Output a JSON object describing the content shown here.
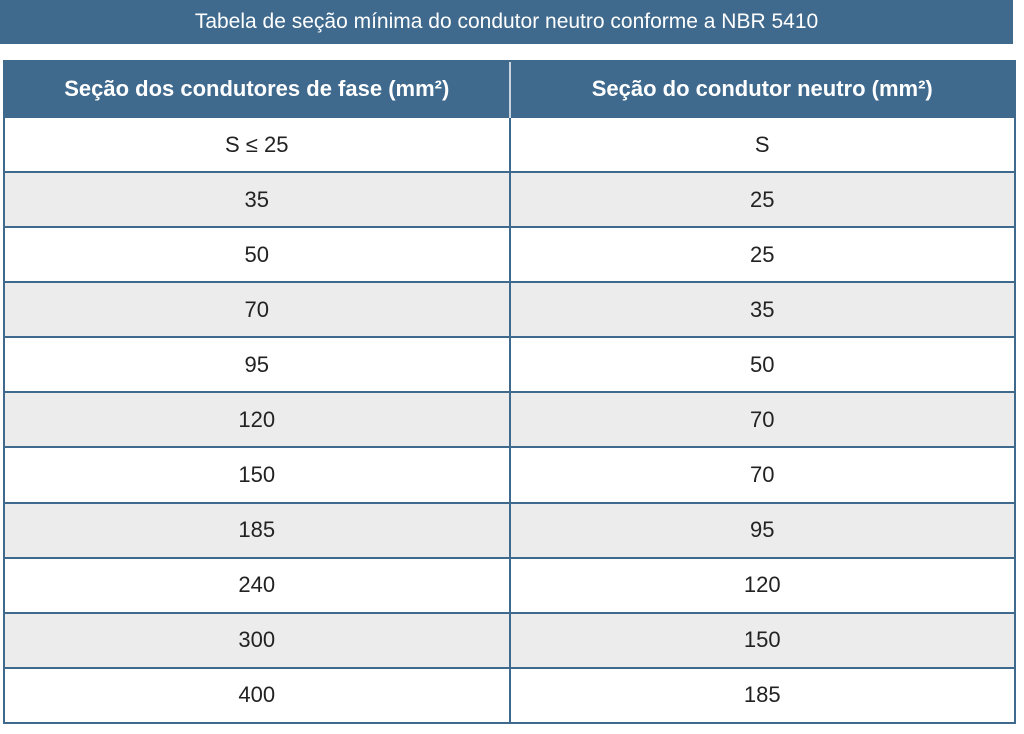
{
  "title": "Tabela de seção mínima do condutor neutro conforme a NBR 5410",
  "table": {
    "headers": [
      "Seção dos condutores de fase (mm²)",
      "Seção do condutor neutro (mm²)"
    ],
    "rows": [
      [
        "S ≤ 25",
        "S"
      ],
      [
        "35",
        "25"
      ],
      [
        "50",
        "25"
      ],
      [
        "70",
        "35"
      ],
      [
        "95",
        "50"
      ],
      [
        "120",
        "70"
      ],
      [
        "150",
        "70"
      ],
      [
        "185",
        "95"
      ],
      [
        "240",
        "120"
      ],
      [
        "300",
        "150"
      ],
      [
        "400",
        "185"
      ]
    ]
  },
  "colors": {
    "header_bg": "#3f6a8e",
    "stripe_bg": "#ececec"
  }
}
